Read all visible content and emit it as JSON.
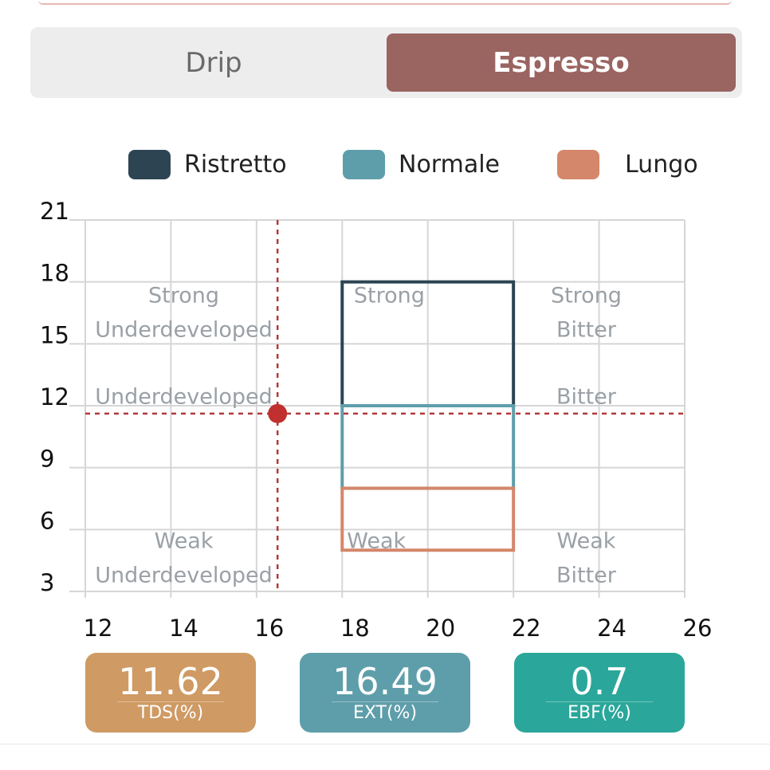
{
  "tabs": {
    "drip_label": "Drip",
    "espresso_label": "Espresso",
    "selected": "Espresso"
  },
  "legend": [
    {
      "label": "Ristretto",
      "color": "#2d4453"
    },
    {
      "label": "Normale",
      "color": "#5e9eaa"
    },
    {
      "label": "Lungo",
      "color": "#d4876a"
    }
  ],
  "chart_data": {
    "type": "scatter",
    "title": "",
    "xlabel": "",
    "ylabel": "",
    "xlim": [
      12,
      26
    ],
    "ylim": [
      3,
      21
    ],
    "x_ticks": [
      12,
      14,
      16,
      18,
      20,
      22,
      24,
      26
    ],
    "y_ticks": [
      3,
      6,
      9,
      12,
      15,
      18,
      21
    ],
    "grid": true,
    "legend_position": "top",
    "regions": [
      {
        "name": "Ristretto",
        "x": [
          18,
          22
        ],
        "y": [
          12,
          18
        ],
        "color": "#2d4453"
      },
      {
        "name": "Normale",
        "x": [
          18,
          22
        ],
        "y": [
          8,
          12
        ],
        "color": "#5e9eaa"
      },
      {
        "name": "Lungo",
        "x": [
          18,
          22
        ],
        "y": [
          5,
          8
        ],
        "color": "#d4876a"
      }
    ],
    "zone_labels": [
      {
        "lines": [
          "Strong",
          "Underdeveloped"
        ],
        "x": 14.3,
        "y": 17.0
      },
      {
        "lines": [
          "Strong"
        ],
        "x": 19.1,
        "y": 17.0
      },
      {
        "lines": [
          "Strong",
          "Bitter"
        ],
        "x": 23.7,
        "y": 17.0
      },
      {
        "lines": [
          "Underdeveloped"
        ],
        "x": 14.3,
        "y": 12.1
      },
      {
        "lines": [
          "Bitter"
        ],
        "x": 23.7,
        "y": 12.1
      },
      {
        "lines": [
          "Weak",
          "Underdeveloped"
        ],
        "x": 14.3,
        "y": 5.1
      },
      {
        "lines": [
          "Weak"
        ],
        "x": 18.8,
        "y": 5.1
      },
      {
        "lines": [
          "Weak",
          "Bitter"
        ],
        "x": 23.7,
        "y": 5.1
      }
    ],
    "point": {
      "x": 16.49,
      "y": 11.62,
      "color": "#c0302e"
    }
  },
  "stats": [
    {
      "value": "11.62",
      "label": "TDS(%)",
      "color": "#cf9a63"
    },
    {
      "value": "16.49",
      "label": "EXT(%)",
      "color": "#5e9eaa"
    },
    {
      "value": "0.7",
      "label": "EBF(%)",
      "color": "#2aa79a"
    }
  ]
}
